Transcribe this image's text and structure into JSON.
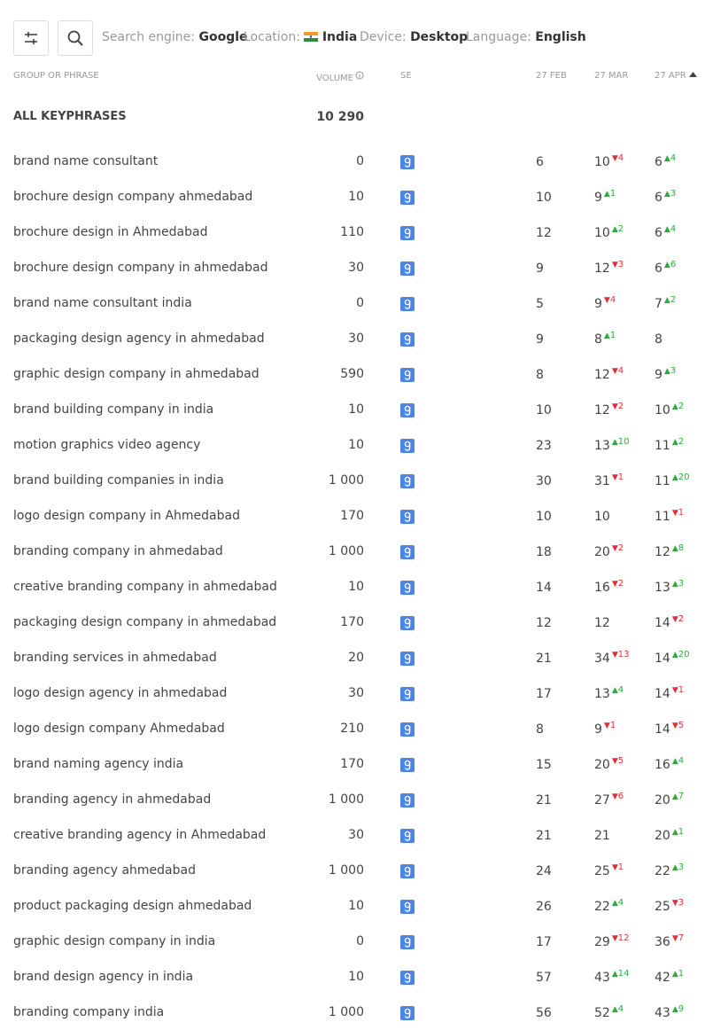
{
  "filters": {
    "search_engine_label": "Search engine:",
    "search_engine": "Google",
    "location_label": "Location:",
    "location": "India",
    "device_label": "Device:",
    "device": "Desktop",
    "language_label": "Language:",
    "language": "English"
  },
  "table": {
    "columns": [
      "GROUP OR PHRASE",
      "VOLUME",
      "SE",
      "27 FEB",
      "27 MAR",
      "27 APR"
    ],
    "total": {
      "label": "ALL KEYPHRASES",
      "volume": "10 290"
    },
    "rows": [
      {
        "phrase": "brand name consultant",
        "volume": "0",
        "feb": 6,
        "mar": {
          "pos": 10,
          "down": 4
        },
        "apr": {
          "pos": 6,
          "up": 4
        }
      },
      {
        "phrase": "brochure design company ahmedabad",
        "volume": "10",
        "feb": 10,
        "mar": {
          "pos": 9,
          "up": 1
        },
        "apr": {
          "pos": 6,
          "up": 3
        }
      },
      {
        "phrase": "brochure design in Ahmedabad",
        "volume": "110",
        "feb": 12,
        "mar": {
          "pos": 10,
          "up": 2
        },
        "apr": {
          "pos": 6,
          "up": 4
        }
      },
      {
        "phrase": "brochure design company in ahmedabad",
        "volume": "30",
        "feb": 9,
        "mar": {
          "pos": 12,
          "down": 3
        },
        "apr": {
          "pos": 6,
          "up": 6
        }
      },
      {
        "phrase": "brand name consultant india",
        "volume": "0",
        "feb": 5,
        "mar": {
          "pos": 9,
          "down": 4
        },
        "apr": {
          "pos": 7,
          "up": 2
        }
      },
      {
        "phrase": "packaging design agency in ahmedabad",
        "volume": "30",
        "feb": 9,
        "mar": {
          "pos": 8,
          "up": 1
        },
        "apr": {
          "pos": 8
        }
      },
      {
        "phrase": "graphic design company in ahmedabad",
        "volume": "590",
        "feb": 8,
        "mar": {
          "pos": 12,
          "down": 4
        },
        "apr": {
          "pos": 9,
          "up": 3
        }
      },
      {
        "phrase": "brand building company in india",
        "volume": "10",
        "feb": 10,
        "mar": {
          "pos": 12,
          "down": 2
        },
        "apr": {
          "pos": 10,
          "up": 2
        }
      },
      {
        "phrase": "motion graphics video agency",
        "volume": "10",
        "feb": 23,
        "mar": {
          "pos": 13,
          "up": 10
        },
        "apr": {
          "pos": 11,
          "up": 2
        }
      },
      {
        "phrase": "brand building companies in india",
        "volume": "1 000",
        "feb": 30,
        "mar": {
          "pos": 31,
          "down": 1
        },
        "apr": {
          "pos": 11,
          "up": 20
        }
      },
      {
        "phrase": "logo design company in Ahmedabad",
        "volume": "170",
        "feb": 10,
        "mar": {
          "pos": 10
        },
        "apr": {
          "pos": 11,
          "down": 1
        }
      },
      {
        "phrase": "branding company in ahmedabad",
        "volume": "1 000",
        "feb": 18,
        "mar": {
          "pos": 20,
          "down": 2
        },
        "apr": {
          "pos": 12,
          "up": 8
        }
      },
      {
        "phrase": "creative branding company in ahmedabad",
        "volume": "10",
        "feb": 14,
        "mar": {
          "pos": 16,
          "down": 2
        },
        "apr": {
          "pos": 13,
          "up": 3
        }
      },
      {
        "phrase": "packaging design company in ahmedabad",
        "volume": "170",
        "feb": 12,
        "mar": {
          "pos": 12
        },
        "apr": {
          "pos": 14,
          "down": 2
        }
      },
      {
        "phrase": "branding services in ahmedabad",
        "volume": "20",
        "feb": 21,
        "mar": {
          "pos": 34,
          "down": 13
        },
        "apr": {
          "pos": 14,
          "up": 20
        }
      },
      {
        "phrase": "logo design agency in ahmedabad",
        "volume": "30",
        "feb": 17,
        "mar": {
          "pos": 13,
          "up": 4
        },
        "apr": {
          "pos": 14,
          "down": 1
        }
      },
      {
        "phrase": "logo design company Ahmedabad",
        "volume": "210",
        "feb": 8,
        "mar": {
          "pos": 9,
          "down": 1
        },
        "apr": {
          "pos": 14,
          "down": 5
        }
      },
      {
        "phrase": "brand naming agency india",
        "volume": "170",
        "feb": 15,
        "mar": {
          "pos": 20,
          "down": 5
        },
        "apr": {
          "pos": 16,
          "up": 4
        }
      },
      {
        "phrase": "branding agency in ahmedabad",
        "volume": "1 000",
        "feb": 21,
        "mar": {
          "pos": 27,
          "down": 6
        },
        "apr": {
          "pos": 20,
          "up": 7
        }
      },
      {
        "phrase": "creative branding agency in Ahmedabad",
        "volume": "30",
        "feb": 21,
        "mar": {
          "pos": 21
        },
        "apr": {
          "pos": 20,
          "up": 1
        }
      },
      {
        "phrase": "branding agency ahmedabad",
        "volume": "1 000",
        "feb": 24,
        "mar": {
          "pos": 25,
          "down": 1
        },
        "apr": {
          "pos": 22,
          "up": 3
        }
      },
      {
        "phrase": "product packaging design ahmedabad",
        "volume": "10",
        "feb": 26,
        "mar": {
          "pos": 22,
          "up": 4
        },
        "apr": {
          "pos": 25,
          "down": 3
        }
      },
      {
        "phrase": "graphic design company in india",
        "volume": "0",
        "feb": 17,
        "mar": {
          "pos": 29,
          "down": 12
        },
        "apr": {
          "pos": 36,
          "down": 7
        }
      },
      {
        "phrase": "brand design agency in india",
        "volume": "10",
        "feb": 57,
        "mar": {
          "pos": 43,
          "up": 14
        },
        "apr": {
          "pos": 42,
          "up": 1
        }
      },
      {
        "phrase": "branding company india",
        "volume": "1 000",
        "feb": 56,
        "mar": {
          "pos": 52,
          "up": 4
        },
        "apr": {
          "pos": 43,
          "up": 9
        }
      }
    ]
  }
}
